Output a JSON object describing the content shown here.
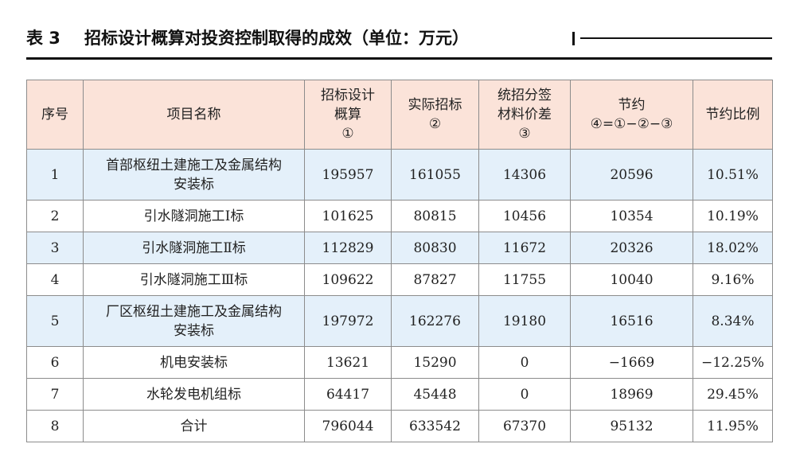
{
  "title": {
    "label": "表 3",
    "text": "招标设计概算对投资控制取得的成效（单位：万元）"
  },
  "colors": {
    "header_bg": "#fbe3d9",
    "alt_row_bg": "#e4f0fa",
    "border": "#8c8c8c",
    "rule": "#111111"
  },
  "table": {
    "headers": [
      {
        "lines": [
          "序号"
        ]
      },
      {
        "lines": [
          "项目名称"
        ]
      },
      {
        "lines": [
          "招标设计",
          "概算",
          "①"
        ]
      },
      {
        "lines": [
          "实际招标",
          "②"
        ]
      },
      {
        "lines": [
          "统招分签",
          "材料价差",
          "③"
        ]
      },
      {
        "lines": [
          "节约",
          "④=①−②−③"
        ]
      },
      {
        "lines": [
          "节约比例"
        ]
      }
    ],
    "rows": [
      {
        "no": "1",
        "name_lines": [
          "首部枢纽土建施工及金属结构",
          "安装标"
        ],
        "budget": "195957",
        "actual": "161055",
        "diff": "14306",
        "saving": "20596",
        "ratio": "10.51%"
      },
      {
        "no": "2",
        "name_lines": [
          "引水隧洞施工Ⅰ标"
        ],
        "budget": "101625",
        "actual": "80815",
        "diff": "10456",
        "saving": "10354",
        "ratio": "10.19%"
      },
      {
        "no": "3",
        "name_lines": [
          "引水隧洞施工Ⅱ标"
        ],
        "budget": "112829",
        "actual": "80830",
        "diff": "11672",
        "saving": "20326",
        "ratio": "18.02%"
      },
      {
        "no": "4",
        "name_lines": [
          "引水隧洞施工Ⅲ标"
        ],
        "budget": "109622",
        "actual": "87827",
        "diff": "11755",
        "saving": "10040",
        "ratio": "9.16%"
      },
      {
        "no": "5",
        "name_lines": [
          "厂区枢纽土建施工及金属结构",
          "安装标"
        ],
        "budget": "197972",
        "actual": "162276",
        "diff": "19180",
        "saving": "16516",
        "ratio": "8.34%"
      },
      {
        "no": "6",
        "name_lines": [
          "机电安装标"
        ],
        "budget": "13621",
        "actual": "15290",
        "diff": "0",
        "saving": "−1669",
        "ratio": "−12.25%"
      },
      {
        "no": "7",
        "name_lines": [
          "水轮发电机组标"
        ],
        "budget": "64417",
        "actual": "45448",
        "diff": "0",
        "saving": "18969",
        "ratio": "29.45%"
      },
      {
        "no": "8",
        "name_lines": [
          "合计"
        ],
        "budget": "796044",
        "actual": "633542",
        "diff": "67370",
        "saving": "95132",
        "ratio": "11.95%"
      }
    ]
  }
}
